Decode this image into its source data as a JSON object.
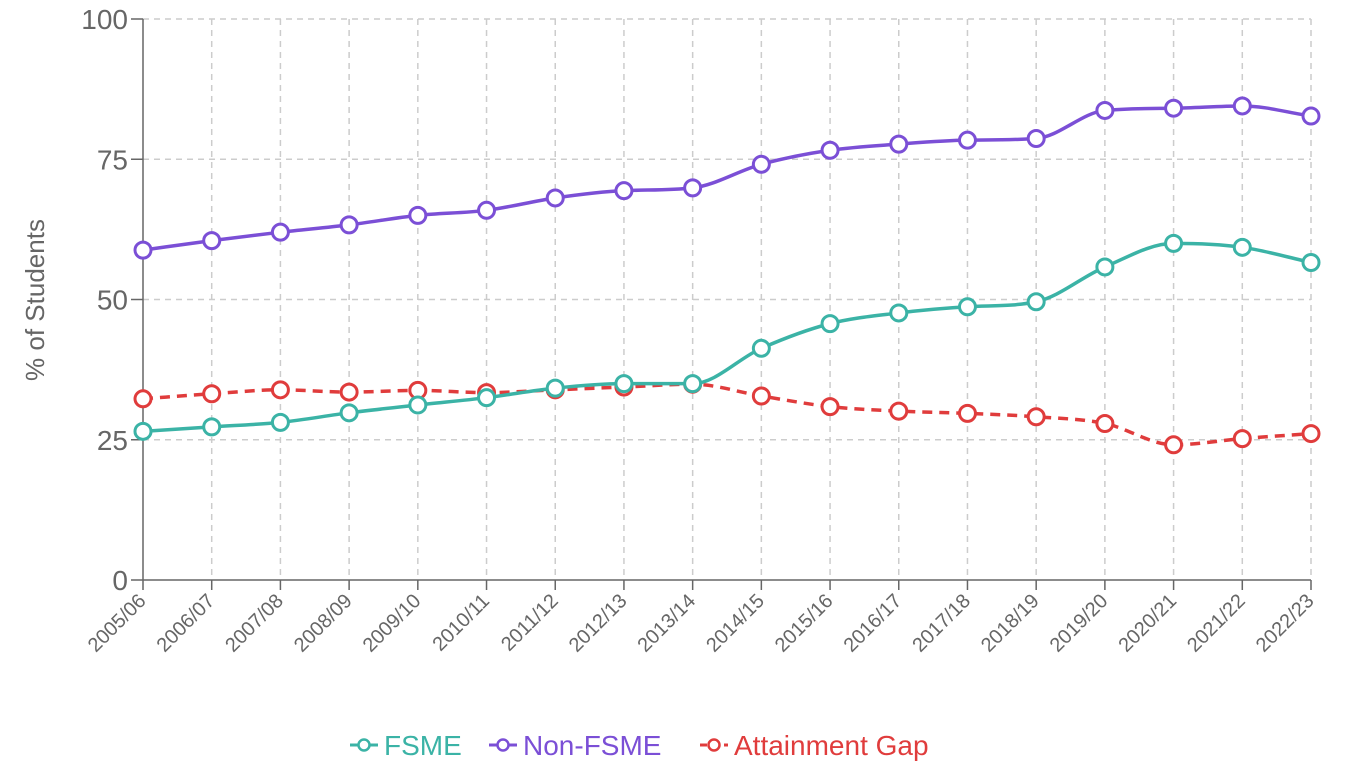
{
  "chart_data": {
    "type": "line",
    "title": "",
    "xlabel": "",
    "ylabel": "% of Students",
    "ylim": [
      0,
      100
    ],
    "yticks": [
      0,
      25,
      50,
      75,
      100
    ],
    "grid": true,
    "legend_position": "bottom",
    "categories": [
      "2005/06",
      "2006/07",
      "2007/08",
      "2008/09",
      "2009/10",
      "2010/11",
      "2011/12",
      "2012/13",
      "2013/14",
      "2014/15",
      "2015/16",
      "2016/17",
      "2017/18",
      "2018/19",
      "2019/20",
      "2020/21",
      "2021/22",
      "2022/23"
    ],
    "series": [
      {
        "name": "FSME",
        "color": "#3bb3a6",
        "dashed": false,
        "values": [
          26.5,
          27.3,
          28.1,
          29.8,
          31.2,
          32.5,
          34.2,
          35.0,
          35.0,
          41.3,
          45.7,
          47.6,
          48.7,
          49.6,
          55.8,
          60.0,
          59.3,
          56.6
        ]
      },
      {
        "name": "Non-FSME",
        "color": "#7b4fd6",
        "dashed": false,
        "values": [
          58.8,
          60.5,
          62.0,
          63.3,
          65.0,
          65.9,
          68.1,
          69.4,
          69.9,
          74.1,
          76.6,
          77.7,
          78.4,
          78.7,
          83.7,
          84.1,
          84.5,
          82.7
        ]
      },
      {
        "name": "Attainment Gap",
        "color": "#e03c3c",
        "dashed": true,
        "values": [
          32.3,
          33.2,
          33.9,
          33.5,
          33.8,
          33.4,
          33.9,
          34.4,
          34.9,
          32.8,
          30.9,
          30.1,
          29.7,
          29.1,
          27.9,
          24.1,
          25.2,
          26.1
        ]
      }
    ]
  }
}
